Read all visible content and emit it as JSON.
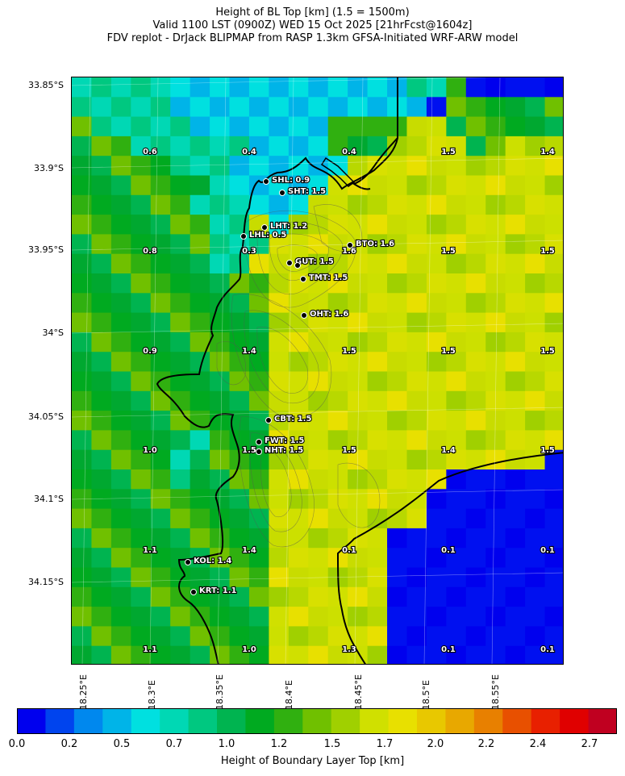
{
  "title": {
    "line1": "Height of BL Top [km] (1.5 = 1500m)",
    "line2": "Valid 1100 LST (0900Z) WED 15 Oct 2025 [21hrFcst@1604z]",
    "line3": "FDV replot - DrJack BLIPMAP from RASP 1.3km GFSA-Initiated WRF-ARW model"
  },
  "lat_ticks": [
    "33.85°S",
    "33.9°S",
    "33.95°S",
    "34°S",
    "34.05°S",
    "34.1°S",
    "34.15°S"
  ],
  "lon_ticks": [
    "18.25°E",
    "18.3°E",
    "18.35°E",
    "18.4°E",
    "18.45°E",
    "18.5°E",
    "18.55°E"
  ],
  "colorbar": {
    "label": "Height of Boundary Layer Top [km]",
    "ticks": [
      "0.0",
      "0.2",
      "0.5",
      "0.7",
      "1.0",
      "1.2",
      "1.5",
      "1.7",
      "2.0",
      "2.2",
      "2.4",
      "2.7"
    ],
    "colors": [
      "#0000ee",
      "#0044ee",
      "#0088ee",
      "#00b4e8",
      "#00e0e0",
      "#00d8b4",
      "#00c880",
      "#00b450",
      "#00aa20",
      "#30b010",
      "#70c000",
      "#a0d000",
      "#d0e000",
      "#e8e000",
      "#e8c800",
      "#e8a800",
      "#e88000",
      "#e85000",
      "#e82000",
      "#e00000",
      "#c00020"
    ]
  },
  "chart_data": {
    "type": "heatmap",
    "grid_values": [
      [
        "0.6",
        "0.4",
        "0.4",
        "1.5",
        "1.4"
      ],
      [
        "0.8",
        "0.3",
        "1.6",
        "1.5",
        "1.5"
      ],
      [
        "0.9",
        "1.4",
        "1.5",
        "1.5",
        "1.5"
      ],
      [
        "1.0",
        "1.5",
        "1.5",
        "1.4",
        "1.5"
      ],
      [
        "1.1",
        "1.4",
        "0.1",
        "0.1",
        "0.1"
      ],
      [
        "1.1",
        "1.0",
        "1.3",
        "0.1",
        "0.1"
      ]
    ],
    "sites": [
      {
        "name": "SHL: 0.9"
      },
      {
        "name": "SHT: 1.5"
      },
      {
        "name": "LHT: 1.2"
      },
      {
        "name": "LHL: 0.5"
      },
      {
        "name": "BTO: 1.6"
      },
      {
        "name": "GUT: 1.5"
      },
      {
        "name": "TMT: 1.5"
      },
      {
        "name": "OHT: 1.6"
      },
      {
        "name": "CBT: 1.5"
      },
      {
        "name": "FWT: 1.5"
      },
      {
        "name": "NHT: 1.5"
      },
      {
        "name": "KOL: 1.4"
      },
      {
        "name": "KRT: 1.1"
      }
    ]
  }
}
